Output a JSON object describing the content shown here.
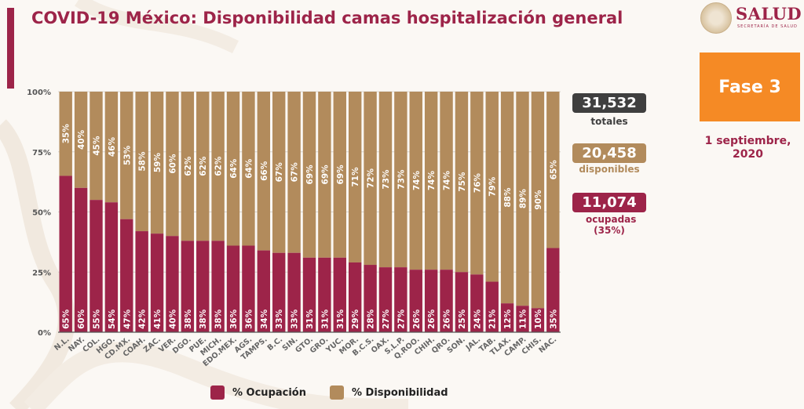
{
  "header": {
    "title": "COVID-19 México: Disponibilidad camas hospitalización general"
  },
  "logo": {
    "name": "SALUD",
    "subtitle": "SECRETARÍA DE SALUD",
    "icon": "coat-of-arms-icon"
  },
  "phase": {
    "label": "Fase 3",
    "color": "#f58a25"
  },
  "date": "1 septiembre, 2020",
  "summary": {
    "total": {
      "value": "31,532",
      "label": "totales",
      "color": "#3f3f3f"
    },
    "available": {
      "value": "20,458",
      "label": "disponibles",
      "color": "#b28b5c"
    },
    "occupied": {
      "value": "11,074",
      "label": "ocupadas (35%)",
      "color": "#9d2449"
    }
  },
  "colors": {
    "brand": "#9d2449",
    "occupied": "#9d2449",
    "available": "#b28b5c"
  },
  "chart_data": {
    "type": "bar",
    "stacked": true,
    "title": "COVID-19 México: Disponibilidad camas hospitalización general",
    "xlabel": "",
    "ylabel": "",
    "ylim": [
      0,
      100
    ],
    "yticks": [
      "0%",
      "25%",
      "50%",
      "75%",
      "100%"
    ],
    "grid": true,
    "legend_position": "bottom",
    "categories": [
      "N.L.",
      "NAY.",
      "COL.",
      "HGO.",
      "CD.MX.",
      "COAH.",
      "ZAC.",
      "VER.",
      "DGO.",
      "PUE.",
      "MICH.",
      "EDO.MEX.",
      "AGS.",
      "TAMPS.",
      "B.C.",
      "SIN.",
      "GTO.",
      "GRO.",
      "YUC.",
      "MOR.",
      "B.C.S.",
      "OAX.",
      "S.L.P.",
      "Q.ROO.",
      "CHIH.",
      "QRO.",
      "SON.",
      "JAL.",
      "TAB.",
      "TLAX.",
      "CAMP.",
      "CHIS.",
      "NAC."
    ],
    "series": [
      {
        "name": "% Ocupación",
        "color": "#9d2449",
        "values": [
          65,
          60,
          55,
          54,
          47,
          42,
          41,
          40,
          38,
          38,
          38,
          36,
          36,
          34,
          33,
          33,
          31,
          31,
          31,
          29,
          28,
          27,
          27,
          26,
          26,
          26,
          25,
          24,
          21,
          12,
          11,
          10,
          35
        ]
      },
      {
        "name": "% Disponibilidad",
        "color": "#b28b5c",
        "values": [
          35,
          40,
          45,
          46,
          53,
          58,
          59,
          60,
          62,
          62,
          62,
          64,
          64,
          66,
          67,
          67,
          69,
          69,
          69,
          71,
          72,
          73,
          73,
          74,
          74,
          74,
          75,
          76,
          79,
          88,
          89,
          90,
          65
        ]
      }
    ]
  }
}
